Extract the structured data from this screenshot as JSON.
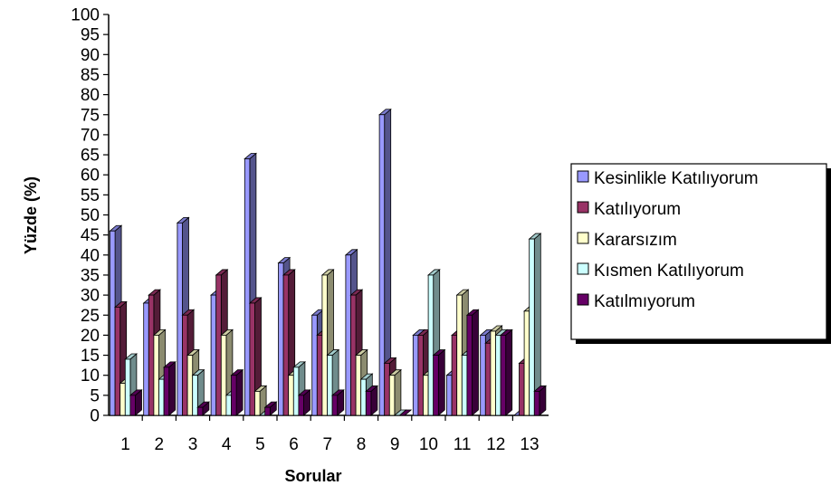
{
  "chart_data": {
    "type": "bar",
    "title": "",
    "xlabel": "Sorular",
    "ylabel": "Yüzde (%)",
    "ylim": [
      0,
      100
    ],
    "yticks": [
      0,
      5,
      10,
      15,
      20,
      25,
      30,
      35,
      40,
      45,
      50,
      55,
      60,
      65,
      70,
      75,
      80,
      85,
      90,
      95,
      100
    ],
    "grid": false,
    "legend_position": "right",
    "categories": [
      "1",
      "2",
      "3",
      "4",
      "5",
      "6",
      "7",
      "8",
      "9",
      "10",
      "11",
      "12",
      "13"
    ],
    "series": [
      {
        "name": "Kesinlikle Katılıyorum",
        "color": "#9999FF",
        "values": [
          46,
          28,
          48,
          30,
          64,
          38,
          25,
          40,
          75,
          20,
          10,
          20,
          0
        ]
      },
      {
        "name": "Katılıyorum",
        "color": "#993366",
        "values": [
          27,
          30,
          25,
          35,
          28,
          35,
          20,
          30,
          13,
          20,
          20,
          18,
          13
        ]
      },
      {
        "name": "Kararsızım",
        "color": "#FFFFCC",
        "values": [
          8,
          20,
          15,
          20,
          6,
          10,
          35,
          15,
          10,
          10,
          30,
          21,
          26
        ]
      },
      {
        "name": "Kısmen Katılıyorum",
        "color": "#CCFFFF",
        "values": [
          14,
          9,
          10,
          5,
          0,
          12,
          15,
          9,
          0,
          35,
          15,
          20,
          44
        ]
      },
      {
        "name": "Katılmıyorum",
        "color": "#660066",
        "values": [
          5,
          12,
          2,
          10,
          2,
          5,
          5,
          6,
          0,
          15,
          25,
          20,
          6
        ]
      }
    ]
  }
}
